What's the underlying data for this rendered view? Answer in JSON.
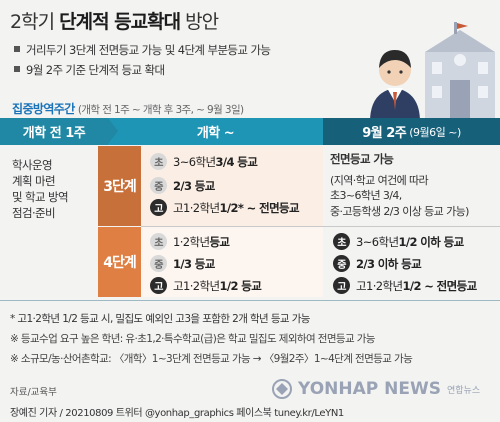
{
  "header": {
    "title_light": "2학기",
    "title_bold": "단계적 등교확대",
    "title_tail": "방안",
    "bullets": [
      "거리두기 3단계 전면등교 가능 및 4단계 부분등교 가능",
      "9월 2주 기준 단계적 등교 확대"
    ]
  },
  "period": {
    "label": "집중방역주간",
    "sub": "(개학 전 1주 ~ 개학 후 3주, ~ 9월 3일)"
  },
  "columns": {
    "before": "개학 전 1주",
    "opening": "개학 ~",
    "sept_main": "9월 2주",
    "sept_sub": "(9월6일 ~)"
  },
  "left_text": [
    "학사운영",
    "계획 마련",
    "및 학교 방역",
    "점검·준비"
  ],
  "colors": {
    "header_teal": "#1e95b5",
    "header_dark": "#17607a",
    "step3": "#c8703a",
    "step4": "#e07f43",
    "accent_blue": "#1a73b8"
  },
  "step3": {
    "label": "3단계",
    "rows": [
      {
        "badge": "초",
        "text": "3~6학년 ",
        "emph": "3/4 등교",
        "dark": false
      },
      {
        "badge": "중",
        "text": "",
        "emph": "2/3 등교",
        "dark": false
      },
      {
        "badge": "고",
        "text": "고1·2학년 ",
        "emph": "1/2* ~ 전면등교",
        "dark": true
      }
    ],
    "right_title": "전면등교 가능",
    "right_lines": [
      "(지역·학교 여건에 따라",
      "초3~6학년 3/4,",
      "중·고등학생 2/3 이상 등교 가능)"
    ]
  },
  "step4": {
    "label": "4단계",
    "rows": [
      {
        "badge": "초",
        "text": "1·2학년 ",
        "emph": "등교",
        "dark": false
      },
      {
        "badge": "중",
        "text": "",
        "emph": "1/3 등교",
        "dark": false
      },
      {
        "badge": "고",
        "text": "고1·2학년 ",
        "emph": "1/2 등교",
        "dark": true
      }
    ],
    "right_rows": [
      {
        "badge": "초",
        "text": "3~6학년 ",
        "emph": "1/2 이하 등교"
      },
      {
        "badge": "중",
        "text": "",
        "emph": "2/3 이하 등교"
      },
      {
        "badge": "고",
        "text": "고1·2학년 ",
        "emph": "1/2 ~ 전면등교"
      }
    ]
  },
  "footnotes": [
    "* 고1·2학년 1/2 등교 시, 밀집도 예외인 고3을 포함한 2개 학년 등교 가능",
    "※ 등교수업 요구 높은 학년: 유·초1,2·특수학교(급)은 학교 밀집도 제외하여 전면등교 가능",
    "※ 소규모/농·산어촌학교: 〈개학〉1~3단계 전면등교 가능 → 〈9월2주〉1~4단계 전면등교 가능"
  ],
  "source": "자료/교육부",
  "credit": "장예진 기자 / 20210809 트위터 @yonhap_graphics  페이스북 tuney.kr/LeYN1",
  "watermark": {
    "main": "YONHAP NEWS",
    "small": "연합뉴스"
  },
  "icons": [
    "school-building-icon",
    "student-figure-icon",
    "arrow-right-icon"
  ]
}
